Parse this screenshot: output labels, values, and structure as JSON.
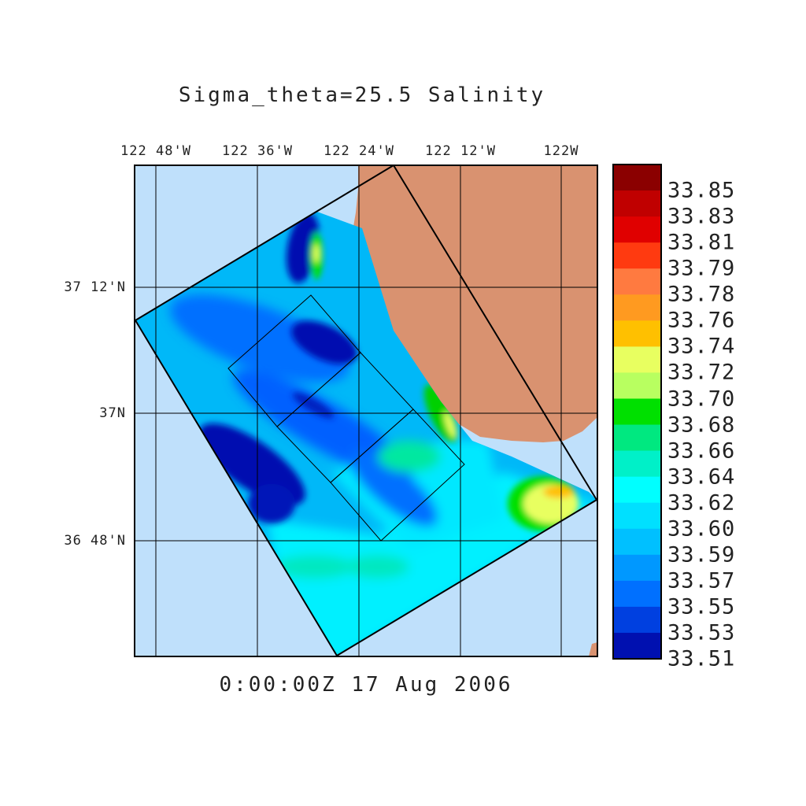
{
  "title": "Sigma_theta=25.5 Salinity",
  "timestamp": "0:00:00Z  17 Aug 2006",
  "longitude_labels": [
    "122 48'W",
    "122 36'W",
    "122 24'W",
    "122 12'W",
    "122W"
  ],
  "latitude_labels": [
    "37 12'N",
    "37N",
    "36 48'N"
  ],
  "colorbar": {
    "labels": [
      "33.85",
      "33.83",
      "33.81",
      "33.79",
      "33.78",
      "33.76",
      "33.74",
      "33.72",
      "33.70",
      "33.68",
      "33.66",
      "33.64",
      "33.62",
      "33.60",
      "33.59",
      "33.57",
      "33.55",
      "33.53",
      "33.51"
    ],
    "colors": [
      "#8b0000",
      "#c00000",
      "#e00000",
      "#ff3a10",
      "#ff7a40",
      "#ff9a20",
      "#ffc000",
      "#e8ff60",
      "#b8ff60",
      "#00e000",
      "#00e880",
      "#00f0c8",
      "#00ffff",
      "#00e0ff",
      "#00c0ff",
      "#0098ff",
      "#0070ff",
      "#0040e0",
      "#0010b0"
    ]
  },
  "colors": {
    "ocean": "#bfe0fb",
    "land": "#d99270",
    "frame": "#000000"
  }
}
